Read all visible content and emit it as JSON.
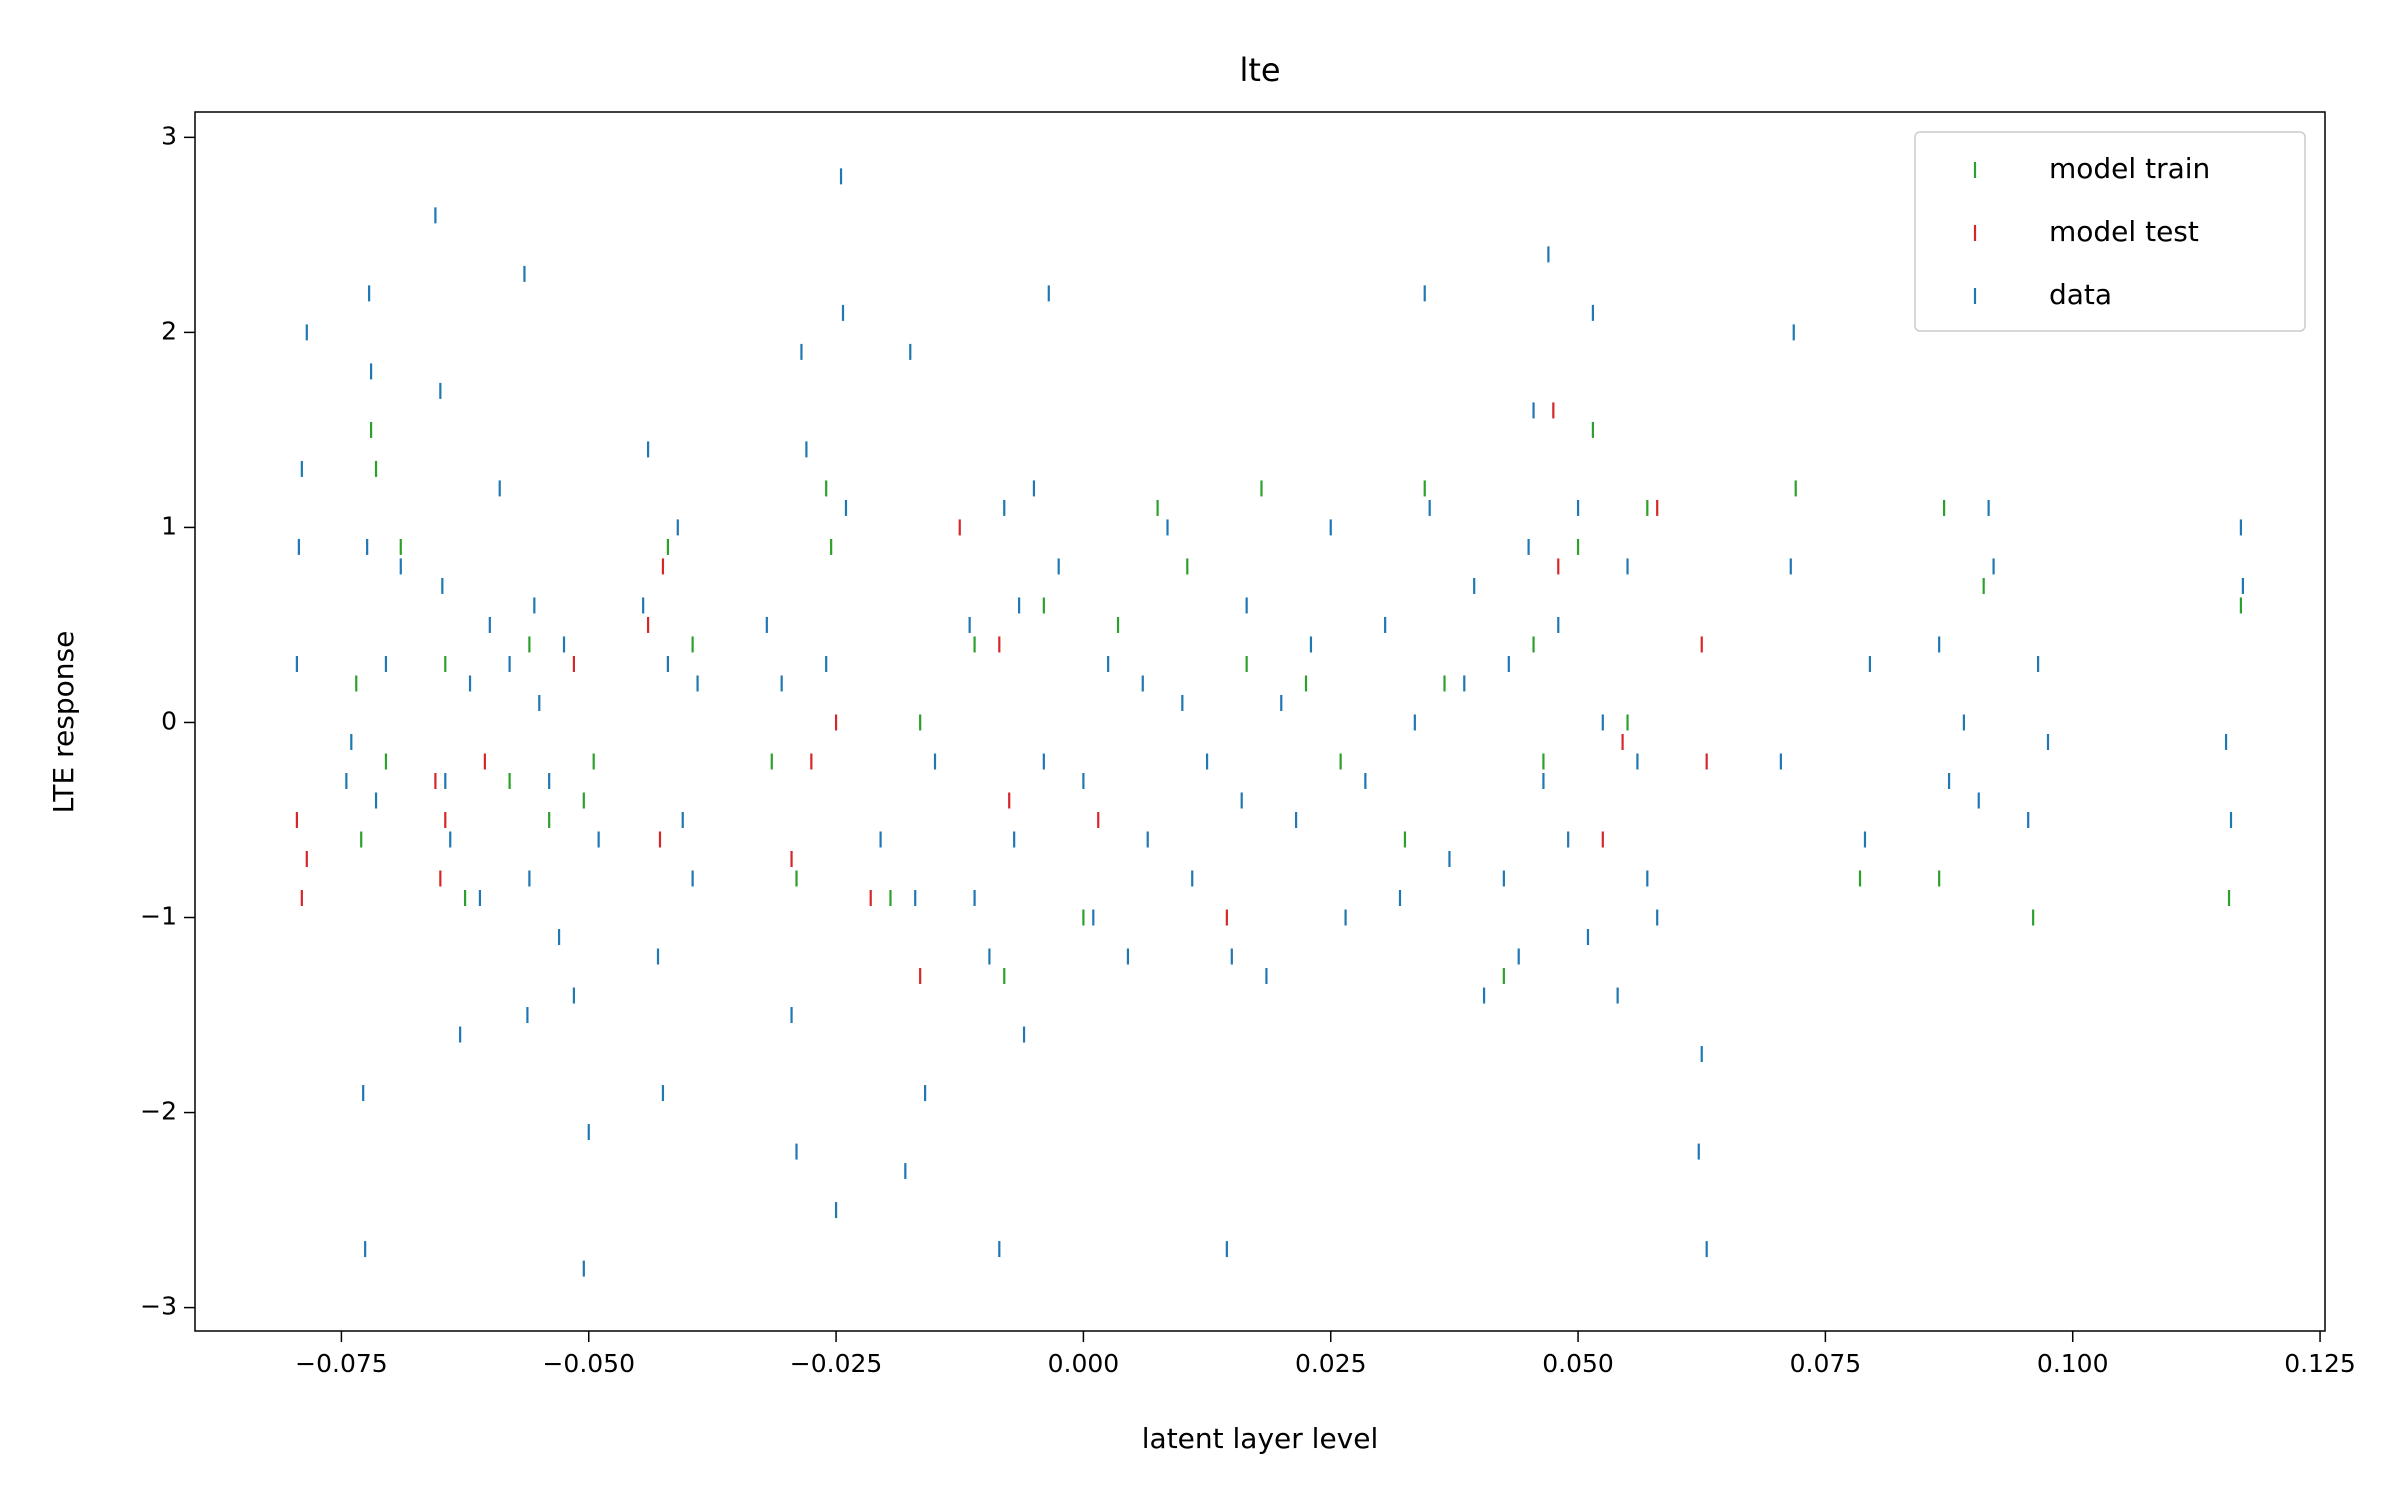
{
  "chart_data": {
    "type": "scatter",
    "title": "lte",
    "x_label": "latent layer level",
    "y_label": "LTE response",
    "xlim": [
      -0.0898,
      0.1255
    ],
    "ylim": [
      -3.12,
      3.13
    ],
    "xticks": [
      {
        "value": -0.075,
        "label": "−0.075"
      },
      {
        "value": -0.05,
        "label": "−0.050"
      },
      {
        "value": -0.025,
        "label": "−0.025"
      },
      {
        "value": 0,
        "label": "0.000"
      },
      {
        "value": 0.025,
        "label": "0.025"
      },
      {
        "value": 0.05,
        "label": "0.050"
      },
      {
        "value": 0.075,
        "label": "0.075"
      },
      {
        "value": 0.1,
        "label": "0.100"
      },
      {
        "value": 0.125,
        "label": "0.125"
      }
    ],
    "yticks": [
      {
        "value": -3,
        "label": "−3"
      },
      {
        "value": -2,
        "label": "−2"
      },
      {
        "value": -1,
        "label": "−1"
      },
      0,
      1,
      2,
      3
    ],
    "legend": "upper right",
    "marker": "|",
    "series": [
      {
        "name": "model train",
        "color": "#2ca02c",
        "x": [
          -0.0735,
          -0.073,
          -0.072,
          -0.0715,
          -0.0705,
          -0.069,
          -0.0645,
          -0.0625,
          -0.058,
          -0.056,
          -0.054,
          -0.0505,
          -0.0495,
          -0.042,
          -0.0395,
          -0.0315,
          -0.029,
          -0.026,
          -0.0255,
          -0.0195,
          -0.0165,
          -0.011,
          -0.008,
          -0.004,
          0.0,
          0.0035,
          0.0075,
          0.0105,
          0.0165,
          0.018,
          0.0225,
          0.026,
          0.0325,
          0.0345,
          0.0365,
          0.0425,
          0.0455,
          0.0465,
          0.05,
          0.0515,
          0.055,
          0.057,
          0.072,
          0.0785,
          0.0865,
          0.087,
          0.091,
          0.096,
          0.117,
          0.1158
        ],
        "values": [
          0.2,
          -0.6,
          1.5,
          1.3,
          -0.2,
          0.9,
          0.3,
          -0.9,
          -0.3,
          0.4,
          -0.5,
          -0.4,
          -0.2,
          0.9,
          0.4,
          -0.2,
          -0.8,
          1.2,
          0.9,
          -0.9,
          0.0,
          0.4,
          -1.3,
          0.6,
          -1.0,
          0.5,
          1.1,
          0.8,
          0.3,
          1.2,
          0.2,
          -0.2,
          -0.6,
          1.2,
          0.2,
          -1.3,
          0.4,
          -0.2,
          0.9,
          1.5,
          0.0,
          1.1,
          1.2,
          -0.8,
          -0.8,
          1.1,
          0.7,
          -1.0,
          0.6,
          -0.9
        ]
      },
      {
        "name": "model test",
        "color": "#d62728",
        "x": [
          -0.0795,
          -0.079,
          -0.0785,
          -0.0655,
          -0.065,
          -0.0645,
          -0.0605,
          -0.0515,
          -0.044,
          -0.0425,
          -0.0428,
          -0.0295,
          -0.0275,
          -0.025,
          -0.0215,
          -0.0165,
          -0.0125,
          -0.0085,
          -0.0075,
          0.0015,
          0.0145,
          0.0475,
          0.048,
          0.0525,
          0.0545,
          0.058,
          0.0625,
          0.063
        ],
        "values": [
          -0.5,
          -0.9,
          -0.7,
          -0.3,
          -0.8,
          -0.5,
          -0.2,
          0.3,
          0.5,
          0.8,
          -0.6,
          -0.7,
          -0.2,
          0.0,
          -0.9,
          -1.3,
          1.0,
          0.4,
          -0.4,
          -0.5,
          -1.0,
          1.6,
          0.8,
          -0.6,
          -0.1,
          1.1,
          0.4,
          -0.2
        ]
      },
      {
        "name": "data",
        "color": "#1f77b4",
        "x": [
          -0.0795,
          -0.0793,
          -0.079,
          -0.0785,
          -0.0745,
          -0.074,
          -0.0728,
          -0.0726,
          -0.0724,
          -0.0722,
          -0.072,
          -0.0715,
          -0.0705,
          -0.069,
          -0.0655,
          -0.065,
          -0.0648,
          -0.0645,
          -0.064,
          -0.063,
          -0.062,
          -0.061,
          -0.06,
          -0.059,
          -0.058,
          -0.0565,
          -0.0562,
          -0.056,
          -0.0555,
          -0.055,
          -0.054,
          -0.053,
          -0.0525,
          -0.0515,
          -0.0505,
          -0.05,
          -0.049,
          -0.0445,
          -0.044,
          -0.043,
          -0.0425,
          -0.042,
          -0.041,
          -0.0405,
          -0.0395,
          -0.039,
          -0.032,
          -0.0305,
          -0.0295,
          -0.029,
          -0.0285,
          -0.028,
          -0.026,
          -0.025,
          -0.0245,
          -0.0243,
          -0.024,
          -0.0205,
          -0.018,
          -0.0175,
          -0.017,
          -0.016,
          -0.015,
          -0.0115,
          -0.011,
          -0.0095,
          -0.0085,
          -0.008,
          -0.007,
          -0.0065,
          -0.006,
          -0.005,
          -0.004,
          -0.0035,
          -0.0025,
          0.0,
          0.001,
          0.0025,
          0.0045,
          0.006,
          0.0065,
          0.0085,
          0.01,
          0.011,
          0.0125,
          0.0145,
          0.015,
          0.016,
          0.0165,
          0.0185,
          0.02,
          0.0215,
          0.023,
          0.025,
          0.0265,
          0.0285,
          0.0305,
          0.032,
          0.0335,
          0.0345,
          0.035,
          0.037,
          0.0385,
          0.0395,
          0.0405,
          0.0425,
          0.043,
          0.044,
          0.045,
          0.0455,
          0.0465,
          0.047,
          0.048,
          0.049,
          0.05,
          0.051,
          0.0515,
          0.0525,
          0.054,
          0.055,
          0.056,
          0.057,
          0.058,
          0.0625,
          0.063,
          0.0622,
          0.0705,
          0.0715,
          0.0718,
          0.079,
          0.0795,
          0.0865,
          0.0875,
          0.089,
          0.0905,
          0.0915,
          0.092,
          0.0955,
          0.0965,
          0.0975,
          0.1155,
          0.116,
          0.117,
          0.1172
        ],
        "values": [
          0.3,
          0.9,
          1.3,
          2.0,
          -0.3,
          -0.1,
          -1.9,
          -2.7,
          0.9,
          2.2,
          1.8,
          -0.4,
          0.3,
          0.8,
          2.6,
          1.7,
          0.7,
          -0.3,
          -0.6,
          -1.6,
          0.2,
          -0.9,
          0.5,
          1.2,
          0.3,
          2.3,
          -1.5,
          -0.8,
          0.6,
          0.1,
          -0.3,
          -1.1,
          0.4,
          -1.4,
          -2.8,
          -2.1,
          -0.6,
          0.6,
          1.4,
          -1.2,
          -1.9,
          0.3,
          1.0,
          -0.5,
          -0.8,
          0.2,
          0.5,
          0.2,
          -1.5,
          -2.2,
          1.9,
          1.4,
          0.3,
          -2.5,
          2.8,
          2.1,
          1.1,
          -0.6,
          -2.3,
          1.9,
          -0.9,
          -1.9,
          -0.2,
          0.5,
          -0.9,
          -1.2,
          -2.7,
          1.1,
          -0.6,
          0.6,
          -1.6,
          1.2,
          -0.2,
          2.2,
          0.8,
          -0.3,
          -1.0,
          0.3,
          -1.2,
          0.2,
          -0.6,
          1.0,
          0.1,
          -0.8,
          -0.2,
          -2.7,
          -1.2,
          -0.4,
          0.6,
          -1.3,
          0.1,
          -0.5,
          0.4,
          1.0,
          -1.0,
          -0.3,
          0.5,
          -0.9,
          0.0,
          2.2,
          1.1,
          -0.7,
          0.2,
          0.7,
          -1.4,
          -0.8,
          0.3,
          -1.2,
          0.9,
          1.6,
          -0.3,
          2.4,
          0.5,
          -0.6,
          1.1,
          -1.1,
          2.1,
          0.0,
          -1.4,
          0.8,
          -0.2,
          -0.8,
          -1.0,
          -1.7,
          -2.7,
          -2.2,
          -0.2,
          0.8,
          2.0,
          -0.6,
          0.3,
          0.4,
          -0.3,
          0.0,
          -0.4,
          1.1,
          0.8,
          -0.5,
          0.3,
          -0.1,
          -0.1,
          -0.5,
          1.0,
          0.7
        ]
      }
    ]
  }
}
